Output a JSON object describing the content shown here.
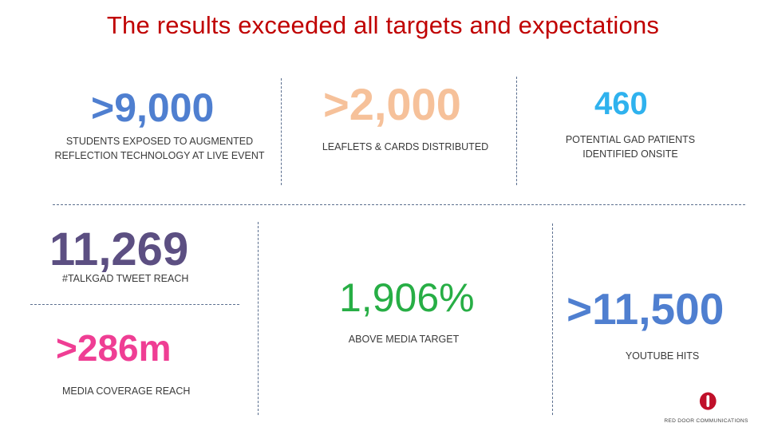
{
  "title": "The results exceeded all targets and expectations",
  "stats": [
    {
      "value": ">9,000",
      "caption": "STUDENTS EXPOSED TO AUGMENTED REFLECTION TECHNOLOGY AT LIVE EVENT",
      "color": "#4f7fd0"
    },
    {
      "value": ">2,000",
      "caption": "LEAFLETS & CARDS DISTRIBUTED",
      "color": "#f6c19a"
    },
    {
      "value": "460",
      "caption": "POTENTIAL GAD PATIENTS IDENTIFIED ONSITE",
      "color": "#2fb2ee"
    },
    {
      "value": "11,269",
      "caption": "#TALKGAD TWEET REACH",
      "color": "#5c4f82"
    },
    {
      "value": ">286m",
      "caption": "MEDIA COVERAGE REACH",
      "color": "#ef3e94"
    },
    {
      "value": "1,906%",
      "caption": "ABOVE MEDIA TARGET",
      "color": "#27ae45"
    },
    {
      "value": ">11,500",
      "caption": "YOUTUBE HITS",
      "color": "#4f7fd0"
    }
  ],
  "logo": {
    "icon": "red-door-logo-icon",
    "text": "RED DOOR COMMUNICATIONS",
    "color": "#c0102a"
  }
}
